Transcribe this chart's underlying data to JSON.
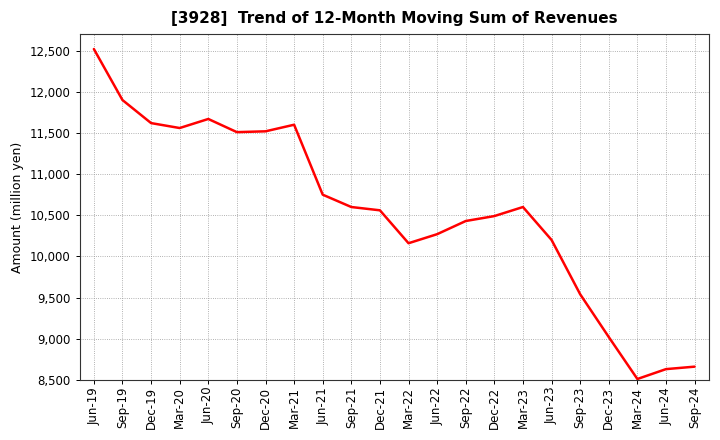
{
  "title": "[3928]  Trend of 12-Month Moving Sum of Revenues",
  "ylabel": "Amount (million yen)",
  "line_color": "#FF0000",
  "line_width": 1.8,
  "background_color": "#FFFFFF",
  "plot_bg_color": "#FFFFFF",
  "grid_color": "#999999",
  "spine_color": "#333333",
  "ylim": [
    8500,
    12700
  ],
  "yticks": [
    8500,
    9000,
    9500,
    10000,
    10500,
    11000,
    11500,
    12000,
    12500
  ],
  "x_labels": [
    "Jun-19",
    "Sep-19",
    "Dec-19",
    "Mar-20",
    "Jun-20",
    "Sep-20",
    "Dec-20",
    "Mar-21",
    "Jun-21",
    "Sep-21",
    "Dec-21",
    "Mar-22",
    "Jun-22",
    "Sep-22",
    "Dec-22",
    "Mar-23",
    "Jun-23",
    "Sep-23",
    "Dec-23",
    "Mar-24",
    "Jun-24",
    "Sep-24"
  ],
  "values": [
    12520,
    11900,
    11620,
    11560,
    11670,
    11510,
    11520,
    11600,
    10750,
    10600,
    10560,
    10160,
    10270,
    10430,
    10490,
    10600,
    10200,
    9540,
    9020,
    8510,
    8630,
    8660
  ],
  "title_fontsize": 11,
  "ylabel_fontsize": 9,
  "tick_fontsize": 8.5
}
